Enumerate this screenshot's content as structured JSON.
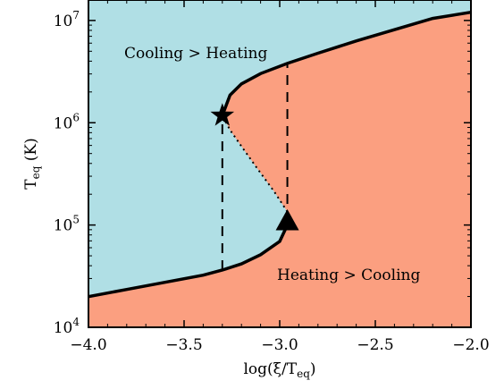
{
  "chart_data": {
    "type": "line",
    "xlabel": "log(ξ/T",
    "xlabel_sub": "eq",
    "xlabel_suffix": ")",
    "ylabel": "T",
    "ylabel_sub": "eq",
    "ylabel_suffix": " (K)",
    "xlim": [
      -4.0,
      -2.0
    ],
    "ylim_log10": [
      4,
      7.2
    ],
    "y_scale": "log",
    "grid": false,
    "x_ticks": [
      {
        "value": -4.0,
        "label": "−4.0"
      },
      {
        "value": -3.5,
        "label": "−3.5"
      },
      {
        "value": -3.0,
        "label": "−3.0"
      },
      {
        "value": -2.5,
        "label": "−2.5"
      },
      {
        "value": -2.0,
        "label": "−2.0"
      }
    ],
    "y_ticks": [
      {
        "exp": 4,
        "base": "10",
        "power": "4"
      },
      {
        "exp": 5,
        "base": "10",
        "power": "5"
      },
      {
        "exp": 6,
        "base": "10",
        "power": "6"
      },
      {
        "exp": 7,
        "base": "10",
        "power": "7"
      }
    ],
    "region_labels": {
      "upper": "Cooling > Heating",
      "lower": "Heating > Cooling"
    },
    "colors": {
      "upper_region": "#b0dfe5",
      "lower_region": "#fb9f80",
      "curve": "#000000"
    },
    "stable_lower": {
      "x": [
        -4.0,
        -3.8,
        -3.6,
        -3.4,
        -3.3,
        -3.2,
        -3.1,
        -3.0,
        -2.96
      ],
      "log10_T": [
        4.3,
        4.37,
        4.44,
        4.51,
        4.56,
        4.62,
        4.71,
        4.84,
        5.0
      ]
    },
    "unstable_branch": {
      "x": [
        -2.96,
        -3.03,
        -3.12,
        -3.2,
        -3.26,
        -3.3
      ],
      "log10_T": [
        5.13,
        5.33,
        5.56,
        5.77,
        5.93,
        6.07
      ]
    },
    "stable_upper": {
      "x": [
        -3.3,
        -3.26,
        -3.2,
        -3.1,
        -2.96,
        -2.8,
        -2.6,
        -2.4,
        -2.2,
        -2.0
      ],
      "log10_T": [
        6.07,
        6.27,
        6.38,
        6.48,
        6.58,
        6.68,
        6.8,
        6.91,
        7.02,
        7.08
      ]
    },
    "markers": [
      {
        "shape": "star",
        "x": -3.3,
        "log10_T": 6.07
      },
      {
        "shape": "triangle",
        "x": -2.96,
        "log10_T": 5.04
      }
    ],
    "transitions": [
      {
        "x": -3.3,
        "log10_T_from": 4.56,
        "log10_T_to": 6.07
      },
      {
        "x": -2.96,
        "log10_T_from": 5.04,
        "log10_T_to": 6.58
      }
    ]
  }
}
